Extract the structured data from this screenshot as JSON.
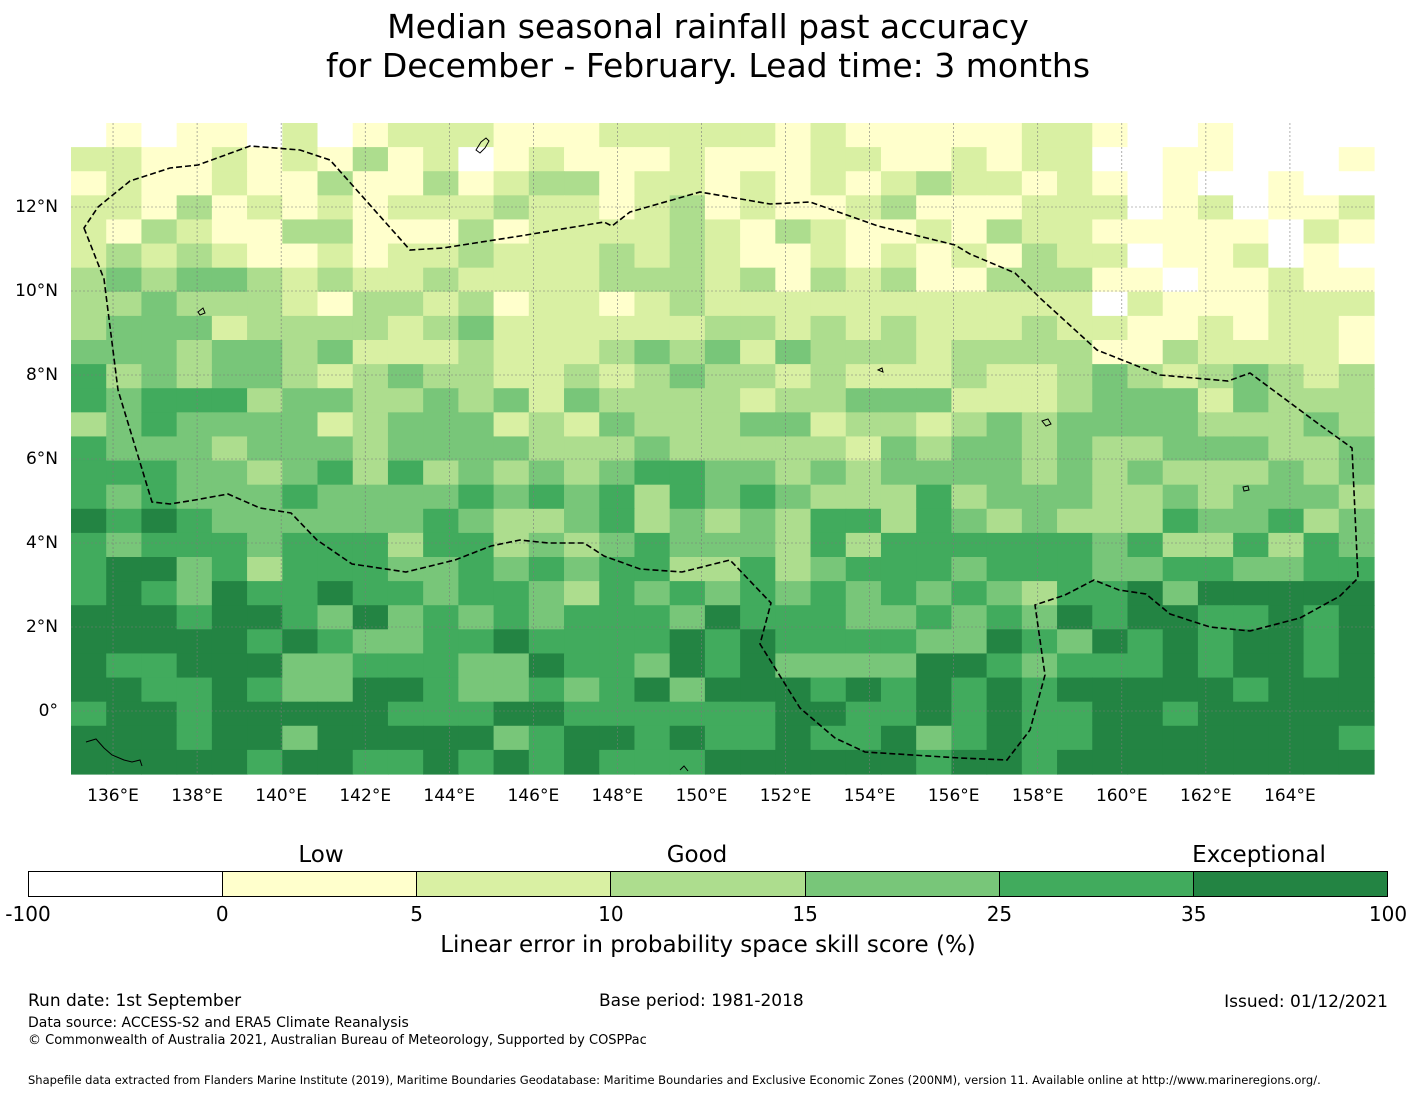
{
  "title": {
    "line1": "Median seasonal rainfall past accuracy",
    "line2": "for December - February. Lead time: 3 months"
  },
  "map": {
    "lon_range": [
      135,
      166
    ],
    "lat_range": [
      -1.5,
      14
    ],
    "lon_ticks": [
      "136°E",
      "138°E",
      "140°E",
      "142°E",
      "144°E",
      "146°E",
      "148°E",
      "150°E",
      "152°E",
      "154°E",
      "156°E",
      "158°E",
      "160°E",
      "162°E",
      "164°E"
    ],
    "lat_ticks": [
      "12°N",
      "10°N",
      "8°N",
      "6°N",
      "4°N",
      "2°N",
      "0°"
    ],
    "gridlines": true,
    "boundary": "dashed EEZ outline",
    "grid_columns": 37,
    "grid_rows": 27
  },
  "colorbar": {
    "category_labels": [
      "Low",
      "Good",
      "Exceptional"
    ],
    "ticks": [
      "-100",
      "0",
      "5",
      "10",
      "15",
      "25",
      "35",
      "100"
    ],
    "colors": [
      "#ffffff",
      "#ffffcc",
      "#d9f0a3",
      "#addd8e",
      "#78c679",
      "#41ab5d",
      "#238443"
    ],
    "label": "Linear error in probability space skill score (%)"
  },
  "footer": {
    "run_date": "Run date: 1st September",
    "base_period": "Base period: 1981-2018",
    "issued": "Issued: 01/12/2021",
    "data_source": "Data source: ACCESS-S2 and ERA5 Climate Reanalysis",
    "copyright": "© Commonwealth of Australia 2021, Australian Bureau of Meteorology, Supported by COSPPac",
    "shapefile": "Shapefile data extracted from Flanders Marine Institute (2019), Maritime Boundaries Geodatabase: Maritime Boundaries and Exclusive Economic Zones (200NM), version 11. Available online at http://www.marineregions.org/."
  }
}
